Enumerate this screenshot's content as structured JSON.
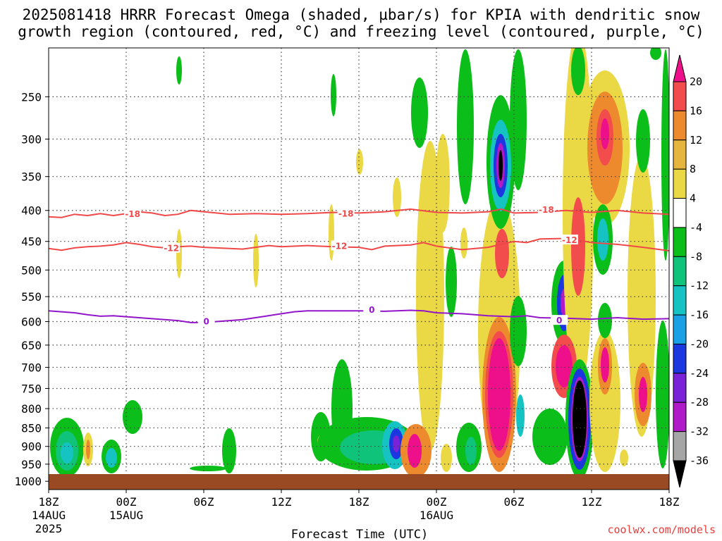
{
  "chart_data": {
    "type": "contour",
    "title_line1": "2025081418 HRRR Forecast Omega (shaded, µbar/s) for KPIA with dendritic snow",
    "title_line2": "growth region (contoured, red, °C) and freezing level (contoured, purple, °C)",
    "xlabel": "Forecast Time (UTC)",
    "credit": "coolwx.com/models",
    "x_ticks": [
      {
        "label": "18Z",
        "date": "14AUG",
        "year": "2025"
      },
      {
        "label": "00Z",
        "date": "15AUG",
        "year": ""
      },
      {
        "label": "06Z",
        "date": "",
        "year": ""
      },
      {
        "label": "12Z",
        "date": "",
        "year": ""
      },
      {
        "label": "18Z",
        "date": "",
        "year": ""
      },
      {
        "label": "00Z",
        "date": "16AUG",
        "year": ""
      },
      {
        "label": "06Z",
        "date": "",
        "year": ""
      },
      {
        "label": "12Z",
        "date": "",
        "year": ""
      },
      {
        "label": "18Z",
        "date": "",
        "year": ""
      }
    ],
    "x_range_hours": [
      0,
      48
    ],
    "y_axis": {
      "scale": "pressure",
      "ylim_hpa": [
        1025,
        200
      ],
      "ticks": [
        250,
        300,
        350,
        400,
        450,
        500,
        550,
        600,
        650,
        700,
        750,
        800,
        850,
        900,
        950,
        1000
      ]
    },
    "colorbar": {
      "levels": [
        20,
        16,
        12,
        8,
        4,
        -4,
        -8,
        -12,
        -16,
        -20,
        -24,
        -28,
        -32,
        -36
      ],
      "colors": [
        "#ee0f8a",
        "#f24c4c",
        "#ee8a2e",
        "#e6b53e",
        "#ead844",
        "#ffffff",
        "#0cbe1a",
        "#10c37a",
        "#15c3c3",
        "#1aa0e4",
        "#1b37e0",
        "#7a22d8",
        "#b01ac8",
        "#a6a6a6",
        "#000000"
      ]
    },
    "contours": [
      {
        "name": "-18",
        "color": "#f04848",
        "points": [
          [
            0,
            410
          ],
          [
            1,
            411
          ],
          [
            2,
            406
          ],
          [
            3,
            408
          ],
          [
            4,
            405
          ],
          [
            5,
            408
          ],
          [
            6,
            405
          ],
          [
            7,
            402
          ],
          [
            8,
            404
          ],
          [
            9,
            408
          ],
          [
            10,
            406
          ],
          [
            11,
            400
          ],
          [
            12,
            402
          ],
          [
            13,
            404
          ],
          [
            14,
            406
          ],
          [
            16,
            405
          ],
          [
            18,
            406
          ],
          [
            20,
            405
          ],
          [
            22,
            403
          ],
          [
            24,
            404
          ],
          [
            26,
            402
          ],
          [
            28,
            398
          ],
          [
            30,
            403
          ],
          [
            32,
            404
          ],
          [
            34,
            402
          ],
          [
            35,
            398
          ],
          [
            36,
            404
          ],
          [
            38,
            403
          ],
          [
            40,
            400
          ],
          [
            42,
            403
          ],
          [
            44,
            400
          ],
          [
            46,
            404
          ],
          [
            48,
            406
          ]
        ],
        "labels": [
          {
            "x": 6.5,
            "y": 406
          },
          {
            "x": 23,
            "y": 405
          },
          {
            "x": 38.5,
            "y": 399
          }
        ]
      },
      {
        "name": "-12",
        "color": "#f04848",
        "points": [
          [
            0,
            462
          ],
          [
            1,
            465
          ],
          [
            2,
            461
          ],
          [
            3,
            459
          ],
          [
            4,
            458
          ],
          [
            5,
            456
          ],
          [
            6,
            452
          ],
          [
            7,
            455
          ],
          [
            8,
            459
          ],
          [
            9,
            461
          ],
          [
            10,
            459
          ],
          [
            11,
            458
          ],
          [
            12,
            460
          ],
          [
            13,
            461
          ],
          [
            14,
            462
          ],
          [
            15,
            463
          ],
          [
            16,
            460
          ],
          [
            17,
            457
          ],
          [
            18,
            459
          ],
          [
            20,
            457
          ],
          [
            22,
            459
          ],
          [
            24,
            460
          ],
          [
            25,
            464
          ],
          [
            26,
            458
          ],
          [
            28,
            456
          ],
          [
            29,
            452
          ],
          [
            30,
            458
          ],
          [
            32,
            464
          ],
          [
            34,
            460
          ],
          [
            35,
            455
          ],
          [
            36,
            450
          ],
          [
            37,
            452
          ],
          [
            38,
            446
          ],
          [
            40,
            445
          ],
          [
            41,
            448
          ],
          [
            42,
            452
          ],
          [
            44,
            455
          ],
          [
            46,
            460
          ],
          [
            48,
            466
          ]
        ],
        "labels": [
          {
            "x": 9.5,
            "y": 462
          },
          {
            "x": 22.5,
            "y": 458
          },
          {
            "x": 40.3,
            "y": 448
          }
        ]
      },
      {
        "name": "0",
        "color": "#9315c9",
        "points": [
          [
            0,
            578
          ],
          [
            1,
            580
          ],
          [
            2,
            582
          ],
          [
            3,
            586
          ],
          [
            4,
            589
          ],
          [
            5,
            588
          ],
          [
            6,
            590
          ],
          [
            7,
            592
          ],
          [
            8,
            594
          ],
          [
            9,
            596
          ],
          [
            10,
            598
          ],
          [
            11,
            602
          ],
          [
            12,
            602
          ],
          [
            13,
            600
          ],
          [
            14,
            598
          ],
          [
            15,
            596
          ],
          [
            16,
            592
          ],
          [
            17,
            588
          ],
          [
            18,
            584
          ],
          [
            19,
            580
          ],
          [
            20,
            578
          ],
          [
            22,
            578
          ],
          [
            24,
            578
          ],
          [
            26,
            579
          ],
          [
            28,
            577
          ],
          [
            29,
            578
          ],
          [
            30,
            582
          ],
          [
            32,
            584
          ],
          [
            34,
            588
          ],
          [
            36,
            590
          ],
          [
            37,
            588
          ],
          [
            38,
            592
          ],
          [
            40,
            593
          ],
          [
            42,
            595
          ],
          [
            44,
            592
          ],
          [
            46,
            595
          ],
          [
            48,
            594
          ]
        ],
        "labels": [
          {
            "x": 12.2,
            "y": 600
          },
          {
            "x": 25,
            "y": 576
          },
          {
            "x": 39.5,
            "y": 598
          }
        ]
      }
    ]
  }
}
